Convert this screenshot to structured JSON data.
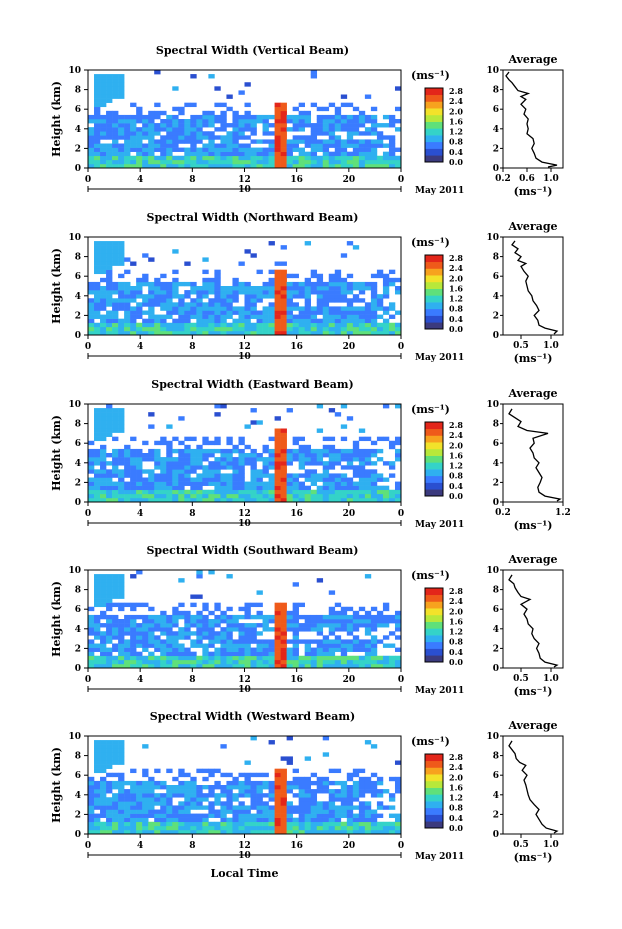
{
  "chart_data": [
    {
      "type": "heatmap",
      "title": "Spectral Width (Vertical Beam)",
      "xlabel": "",
      "ylabel": "Height (km)",
      "xlim": [
        0,
        24
      ],
      "ylim": [
        0,
        10
      ],
      "x_ticks": [
        "0",
        "4",
        "8",
        "12",
        "16",
        "20",
        "0"
      ],
      "y_ticks": [
        "0",
        "2",
        "4",
        "6",
        "8",
        "10"
      ],
      "date_label": "10",
      "month_label": "May 2011",
      "colorbar": {
        "unit": "(ms⁻¹)",
        "ticks": [
          "0.0",
          "0.4",
          "0.8",
          "1.2",
          "1.6",
          "2.0",
          "2.4",
          "2.8"
        ]
      },
      "average": {
        "title": "Average",
        "xlabel": "(ms⁻¹)",
        "x_ticks": [
          "0.2",
          "0.6",
          "1.0"
        ],
        "xlim": [
          0.2,
          1.2
        ],
        "y_ticks": [
          "0",
          "2",
          "4",
          "6",
          "8",
          "10"
        ],
        "profile": [
          [
            0.95,
            0.1
          ],
          [
            1.1,
            0.3
          ],
          [
            0.85,
            0.6
          ],
          [
            0.75,
            1.0
          ],
          [
            0.72,
            1.5
          ],
          [
            0.68,
            2.0
          ],
          [
            0.72,
            2.5
          ],
          [
            0.7,
            3.0
          ],
          [
            0.6,
            3.5
          ],
          [
            0.62,
            4.0
          ],
          [
            0.6,
            4.5
          ],
          [
            0.62,
            5.0
          ],
          [
            0.55,
            5.5
          ],
          [
            0.58,
            6.0
          ],
          [
            0.5,
            6.5
          ],
          [
            0.58,
            7.0
          ],
          [
            0.5,
            7.3
          ],
          [
            0.62,
            7.6
          ],
          [
            0.45,
            7.9
          ],
          [
            0.4,
            8.3
          ],
          [
            0.35,
            8.7
          ],
          [
            0.3,
            9.0
          ],
          [
            0.25,
            9.4
          ],
          [
            0.3,
            9.8
          ]
        ]
      }
    },
    {
      "type": "heatmap",
      "title": "Spectral Width (Northward Beam)",
      "xlabel": "",
      "ylabel": "Height (km)",
      "xlim": [
        0,
        24
      ],
      "ylim": [
        0,
        10
      ],
      "x_ticks": [
        "0",
        "4",
        "8",
        "12",
        "16",
        "20",
        "0"
      ],
      "y_ticks": [
        "0",
        "2",
        "4",
        "6",
        "8",
        "10"
      ],
      "date_label": "10",
      "month_label": "May 2011",
      "colorbar": {
        "unit": "(ms⁻¹)",
        "ticks": [
          "0.0",
          "0.4",
          "0.8",
          "1.2",
          "1.6",
          "2.0",
          "2.4",
          "2.8"
        ]
      },
      "average": {
        "title": "Average",
        "xlabel": "(ms⁻¹)",
        "x_ticks": [
          "0.5",
          "1.0"
        ],
        "xlim": [
          0.2,
          1.2
        ],
        "y_ticks": [
          "0",
          "2",
          "4",
          "6",
          "8",
          "10"
        ],
        "profile": [
          [
            1.05,
            0.1
          ],
          [
            1.1,
            0.4
          ],
          [
            0.9,
            0.7
          ],
          [
            0.8,
            1.0
          ],
          [
            0.78,
            1.5
          ],
          [
            0.72,
            2.0
          ],
          [
            0.8,
            2.5
          ],
          [
            0.76,
            3.0
          ],
          [
            0.7,
            3.5
          ],
          [
            0.68,
            4.0
          ],
          [
            0.62,
            4.5
          ],
          [
            0.6,
            5.0
          ],
          [
            0.58,
            5.5
          ],
          [
            0.62,
            6.0
          ],
          [
            0.55,
            6.5
          ],
          [
            0.5,
            7.0
          ],
          [
            0.58,
            7.3
          ],
          [
            0.45,
            7.6
          ],
          [
            0.5,
            8.0
          ],
          [
            0.4,
            8.4
          ],
          [
            0.45,
            8.8
          ],
          [
            0.35,
            9.2
          ],
          [
            0.4,
            9.6
          ]
        ]
      }
    },
    {
      "type": "heatmap",
      "title": "Spectral Width (Eastward Beam)",
      "xlabel": "",
      "ylabel": "Height (km)",
      "xlim": [
        0,
        24
      ],
      "ylim": [
        0,
        10
      ],
      "x_ticks": [
        "0",
        "4",
        "8",
        "12",
        "16",
        "20",
        "0"
      ],
      "y_ticks": [
        "0",
        "2",
        "4",
        "6",
        "8",
        "10"
      ],
      "date_label": "10",
      "month_label": "May 2011",
      "colorbar": {
        "unit": "(ms⁻¹)",
        "ticks": [
          "0.0",
          "0.4",
          "0.8",
          "1.2",
          "1.6",
          "2.0",
          "2.4",
          "2.8"
        ]
      },
      "average": {
        "title": "Average",
        "xlabel": "(ms⁻¹)",
        "x_ticks": [
          "0.2",
          "1.2"
        ],
        "xlim": [
          0.2,
          1.2
        ],
        "y_ticks": [
          "0",
          "2",
          "4",
          "6",
          "8",
          "10"
        ],
        "profile": [
          [
            1.1,
            0.1
          ],
          [
            1.15,
            0.3
          ],
          [
            0.9,
            0.6
          ],
          [
            0.8,
            1.0
          ],
          [
            0.78,
            1.5
          ],
          [
            0.82,
            2.0
          ],
          [
            0.85,
            2.5
          ],
          [
            0.8,
            3.0
          ],
          [
            0.75,
            3.5
          ],
          [
            0.8,
            4.0
          ],
          [
            0.72,
            4.5
          ],
          [
            0.7,
            5.0
          ],
          [
            0.65,
            5.5
          ],
          [
            0.72,
            6.0
          ],
          [
            0.7,
            6.5
          ],
          [
            0.95,
            7.0
          ],
          [
            0.6,
            7.3
          ],
          [
            0.45,
            7.7
          ],
          [
            0.5,
            8.2
          ],
          [
            0.4,
            8.6
          ],
          [
            0.3,
            9.0
          ],
          [
            0.35,
            9.5
          ]
        ]
      }
    },
    {
      "type": "heatmap",
      "title": "Spectral Width (Southward Beam)",
      "xlabel": "",
      "ylabel": "Height (km)",
      "xlim": [
        0,
        24
      ],
      "ylim": [
        0,
        10
      ],
      "x_ticks": [
        "0",
        "4",
        "8",
        "12",
        "16",
        "20",
        "0"
      ],
      "y_ticks": [
        "0",
        "2",
        "4",
        "6",
        "8",
        "10"
      ],
      "date_label": "10",
      "month_label": "May 2011",
      "colorbar": {
        "unit": "(ms⁻¹)",
        "ticks": [
          "0.0",
          "0.4",
          "0.8",
          "1.2",
          "1.6",
          "2.0",
          "2.4",
          "2.8"
        ]
      },
      "average": {
        "title": "Average",
        "xlabel": "(ms⁻¹)",
        "x_ticks": [
          "0.5",
          "1.0"
        ],
        "xlim": [
          0.2,
          1.2
        ],
        "y_ticks": [
          "0",
          "2",
          "4",
          "6",
          "8",
          "10"
        ],
        "profile": [
          [
            1.05,
            0.1
          ],
          [
            1.1,
            0.3
          ],
          [
            0.9,
            0.6
          ],
          [
            0.82,
            1.0
          ],
          [
            0.8,
            1.5
          ],
          [
            0.76,
            2.0
          ],
          [
            0.8,
            2.5
          ],
          [
            0.72,
            3.0
          ],
          [
            0.68,
            3.5
          ],
          [
            0.7,
            4.0
          ],
          [
            0.62,
            4.5
          ],
          [
            0.6,
            5.0
          ],
          [
            0.55,
            5.5
          ],
          [
            0.6,
            6.0
          ],
          [
            0.5,
            6.5
          ],
          [
            0.65,
            7.0
          ],
          [
            0.5,
            7.3
          ],
          [
            0.45,
            7.7
          ],
          [
            0.4,
            8.2
          ],
          [
            0.38,
            8.6
          ],
          [
            0.3,
            9.0
          ],
          [
            0.35,
            9.5
          ]
        ]
      }
    },
    {
      "type": "heatmap",
      "title": "Spectral Width (Westward Beam)",
      "xlabel": "Local Time",
      "ylabel": "Height (km)",
      "xlim": [
        0,
        24
      ],
      "ylim": [
        0,
        10
      ],
      "x_ticks": [
        "0",
        "4",
        "8",
        "12",
        "16",
        "20",
        "0"
      ],
      "y_ticks": [
        "0",
        "2",
        "4",
        "6",
        "8",
        "10"
      ],
      "date_label": "10",
      "month_label": "May 2011",
      "colorbar": {
        "unit": "(ms⁻¹)",
        "ticks": [
          "0.0",
          "0.4",
          "0.8",
          "1.2",
          "1.6",
          "2.0",
          "2.4",
          "2.8"
        ]
      },
      "average": {
        "title": "Average",
        "xlabel": "(ms⁻¹)",
        "x_ticks": [
          "0.5",
          "1.0"
        ],
        "xlim": [
          0.2,
          1.2
        ],
        "y_ticks": [
          "0",
          "2",
          "4",
          "6",
          "8",
          "10"
        ],
        "profile": [
          [
            1.05,
            0.1
          ],
          [
            1.1,
            0.3
          ],
          [
            0.92,
            0.6
          ],
          [
            0.85,
            1.0
          ],
          [
            0.8,
            1.5
          ],
          [
            0.75,
            2.0
          ],
          [
            0.8,
            2.5
          ],
          [
            0.72,
            3.0
          ],
          [
            0.65,
            3.5
          ],
          [
            0.62,
            4.0
          ],
          [
            0.6,
            4.5
          ],
          [
            0.58,
            5.0
          ],
          [
            0.55,
            5.5
          ],
          [
            0.6,
            6.0
          ],
          [
            0.52,
            6.5
          ],
          [
            0.58,
            7.0
          ],
          [
            0.48,
            7.3
          ],
          [
            0.42,
            7.7
          ],
          [
            0.4,
            8.2
          ],
          [
            0.35,
            8.6
          ],
          [
            0.3,
            9.0
          ],
          [
            0.35,
            9.5
          ]
        ]
      }
    }
  ],
  "colors": {
    "colormap": [
      "#3b3a7e",
      "#2a4fd0",
      "#3a7bff",
      "#2fb0f0",
      "#34d3c8",
      "#5fe07a",
      "#b8e83a",
      "#f2e22a",
      "#f7a21e",
      "#ef5a1a",
      "#e3261a"
    ]
  }
}
